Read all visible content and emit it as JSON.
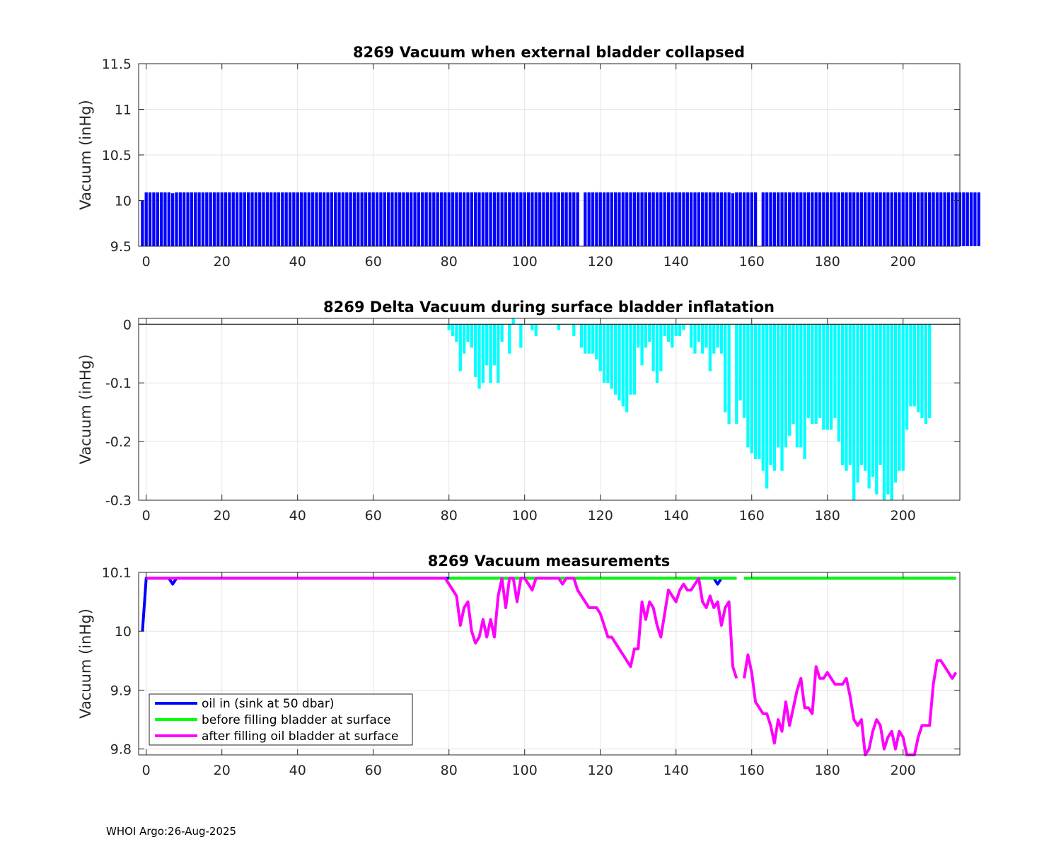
{
  "footer": "WHOI Argo:26-Aug-2025",
  "colors": {
    "blue": "#0000ff",
    "cyan": "#00ffff",
    "green": "#00ff00",
    "magenta": "#ff00ff",
    "grid": "#e5e5e5",
    "axis": "#262626"
  },
  "chart_data": [
    {
      "type": "bar",
      "title": "8269 Vacuum when external bladder collapsed",
      "xlabel": "",
      "ylabel": "Vacuum (inHg)",
      "xlim": [
        -2,
        215
      ],
      "ylim": [
        9.5,
        11.5
      ],
      "xticks": [
        0,
        20,
        40,
        60,
        80,
        100,
        120,
        140,
        160,
        180,
        200
      ],
      "yticks": [
        9.5,
        10,
        10.5,
        11,
        11.5
      ],
      "ytick_labels": [
        "9.5",
        "10",
        "10.5",
        "11",
        "11.5"
      ],
      "grid": true,
      "color": "#0000ff",
      "x_start": -1,
      "values": [
        10.0,
        10.09,
        10.09,
        10.09,
        10.09,
        10.09,
        10.09,
        10.09,
        10.08,
        10.09,
        10.09,
        10.09,
        10.09,
        10.09,
        10.09,
        10.09,
        10.09,
        10.09,
        10.09,
        10.09,
        10.09,
        10.09,
        10.09,
        10.09,
        10.09,
        10.09,
        10.09,
        10.09,
        10.09,
        10.09,
        10.09,
        10.09,
        10.09,
        10.09,
        10.09,
        10.09,
        10.09,
        10.09,
        10.09,
        10.09,
        10.09,
        10.09,
        10.09,
        10.09,
        10.09,
        10.09,
        10.09,
        10.09,
        10.09,
        10.09,
        10.09,
        10.09,
        10.09,
        10.09,
        10.09,
        10.09,
        10.09,
        10.09,
        10.09,
        10.09,
        10.09,
        10.09,
        10.09,
        10.09,
        10.09,
        10.09,
        10.09,
        10.09,
        10.09,
        10.09,
        10.09,
        10.09,
        10.09,
        10.09,
        10.09,
        10.09,
        10.09,
        10.09,
        10.09,
        10.09,
        10.09,
        10.09,
        10.09,
        10.09,
        10.09,
        10.09,
        10.09,
        10.09,
        10.09,
        10.09,
        10.09,
        10.09,
        10.09,
        10.09,
        10.09,
        10.09,
        10.09,
        10.09,
        10.09,
        10.09,
        10.09,
        10.09,
        10.09,
        10.09,
        10.09,
        10.09,
        10.09,
        10.09,
        10.09,
        10.09,
        10.09,
        10.09,
        10.09,
        10.09,
        10.09,
        10.09,
        null,
        10.09,
        10.09,
        10.09,
        10.09,
        10.09,
        10.09,
        10.09,
        10.09,
        10.09,
        10.09,
        10.09,
        10.09,
        10.09,
        10.09,
        10.09,
        10.09,
        10.09,
        10.09,
        10.09,
        10.09,
        10.09,
        10.09,
        10.09,
        10.09,
        10.09,
        10.09,
        10.09,
        10.09,
        10.09,
        10.09,
        10.09,
        10.09,
        10.09,
        10.09,
        10.09,
        10.09,
        10.09,
        10.09,
        10.09,
        10.08,
        10.09,
        10.09,
        10.09,
        10.09,
        10.09,
        10.09,
        null,
        10.09,
        10.09,
        10.09,
        10.09,
        10.09,
        10.09,
        10.09,
        10.09,
        10.09,
        10.09,
        10.09,
        10.09,
        10.09,
        10.09,
        10.09,
        10.09,
        10.09,
        10.09,
        10.09,
        10.09,
        10.09,
        10.09,
        10.09,
        10.09,
        10.09,
        10.09,
        10.09,
        10.09,
        10.09,
        10.09,
        10.09,
        10.09,
        10.09,
        10.09,
        10.09,
        10.09,
        10.09,
        10.09,
        10.09,
        10.09,
        10.09,
        10.09,
        10.09,
        10.09,
        10.09,
        10.09,
        10.09,
        10.09,
        10.09,
        10.09,
        10.09,
        10.09,
        10.09,
        10.09,
        10.09,
        10.09,
        10.09,
        10.09
      ]
    },
    {
      "type": "bar",
      "title": "8269 Delta Vacuum during surface bladder inflatation",
      "xlabel": "",
      "ylabel": "Vacuum (inHg)",
      "xlim": [
        -2,
        215
      ],
      "ylim": [
        -0.3,
        0.01
      ],
      "xticks": [
        0,
        20,
        40,
        60,
        80,
        100,
        120,
        140,
        160,
        180,
        200
      ],
      "yticks": [
        -0.3,
        -0.2,
        -0.1,
        0
      ],
      "ytick_labels": [
        "-0.3",
        "-0.2",
        "-0.1",
        "0"
      ],
      "grid": true,
      "color": "#00ffff",
      "x_start": 80,
      "values": [
        -0.01,
        -0.02,
        -0.03,
        -0.08,
        -0.05,
        -0.03,
        -0.04,
        -0.09,
        -0.11,
        -0.1,
        -0.07,
        -0.1,
        -0.07,
        -0.1,
        -0.03,
        0,
        -0.05,
        0.01,
        0,
        -0.04,
        0,
        0,
        -0.01,
        -0.02,
        0,
        0,
        0,
        0,
        0,
        -0.01,
        0,
        0,
        0,
        -0.02,
        0,
        -0.04,
        -0.05,
        -0.05,
        -0.05,
        -0.06,
        -0.08,
        -0.1,
        -0.1,
        -0.11,
        -0.12,
        -0.13,
        -0.14,
        -0.15,
        -0.12,
        -0.12,
        -0.04,
        -0.07,
        -0.04,
        -0.03,
        -0.08,
        -0.1,
        -0.08,
        -0.02,
        -0.03,
        -0.04,
        -0.02,
        -0.02,
        -0.01,
        0,
        -0.04,
        -0.05,
        -0.03,
        -0.05,
        -0.04,
        -0.08,
        -0.05,
        -0.04,
        -0.05,
        -0.15,
        -0.17,
        0,
        -0.17,
        -0.13,
        -0.16,
        -0.21,
        -0.22,
        -0.23,
        -0.23,
        -0.25,
        -0.28,
        -0.24,
        -0.25,
        -0.21,
        -0.25,
        -0.21,
        -0.19,
        -0.17,
        -0.21,
        -0.21,
        -0.23,
        -0.16,
        -0.17,
        -0.17,
        -0.16,
        -0.18,
        -0.18,
        -0.18,
        -0.16,
        -0.2,
        -0.24,
        -0.25,
        -0.24,
        -0.3,
        -0.27,
        -0.24,
        -0.25,
        -0.28,
        -0.26,
        -0.29,
        -0.24,
        -0.3,
        -0.29,
        -0.3,
        -0.27,
        -0.25,
        -0.25,
        -0.18,
        -0.14,
        -0.14,
        -0.15,
        -0.16,
        -0.17,
        -0.16
      ]
    },
    {
      "type": "line",
      "title": "8269 Vacuum measurements",
      "xlabel": "",
      "ylabel": "Vacuum (inHg)",
      "xlim": [
        -2,
        215
      ],
      "ylim": [
        9.79,
        10.1
      ],
      "xticks": [
        0,
        20,
        40,
        60,
        80,
        100,
        120,
        140,
        160,
        180,
        200
      ],
      "yticks": [
        9.8,
        9.9,
        10,
        10.1
      ],
      "ytick_labels": [
        "9.8",
        "9.9",
        "10",
        "10.1"
      ],
      "grid": true,
      "legend_position": "bottom-left",
      "series": [
        {
          "name": "oil in (sink at 50 dbar)",
          "color": "#0000ff",
          "points": [
            [
              -1,
              10.0
            ],
            [
              0,
              10.09
            ],
            [
              6,
              10.09
            ],
            [
              7,
              10.08
            ],
            [
              8,
              10.09
            ],
            [
              150,
              10.09
            ],
            [
              151,
              10.08
            ],
            [
              152,
              10.09
            ],
            [
              156,
              10.09
            ],
            [
              null,
              null
            ],
            [
              158,
              10.09
            ],
            [
              214,
              10.09
            ]
          ]
        },
        {
          "name": "before filling bladder at surface",
          "color": "#00ff00",
          "points": [
            [
              80,
              10.09
            ],
            [
              156,
              10.09
            ],
            [
              null,
              null
            ],
            [
              158,
              10.09
            ],
            [
              214,
              10.09
            ]
          ]
        },
        {
          "name": "after filling oil bladder at surface",
          "color": "#ff00ff",
          "points": [
            [
              0,
              10.09
            ],
            [
              79,
              10.09
            ],
            [
              80,
              10.08
            ],
            [
              81,
              10.07
            ],
            [
              82,
              10.06
            ],
            [
              83,
              10.01
            ],
            [
              84,
              10.04
            ],
            [
              85,
              10.05
            ],
            [
              86,
              10.0
            ],
            [
              87,
              9.98
            ],
            [
              88,
              9.99
            ],
            [
              89,
              10.02
            ],
            [
              90,
              9.99
            ],
            [
              91,
              10.02
            ],
            [
              92,
              9.99
            ],
            [
              93,
              10.06
            ],
            [
              94,
              10.09
            ],
            [
              95,
              10.04
            ],
            [
              96,
              10.09
            ],
            [
              97,
              10.09
            ],
            [
              98,
              10.05
            ],
            [
              99,
              10.09
            ],
            [
              100,
              10.09
            ],
            [
              101,
              10.08
            ],
            [
              102,
              10.07
            ],
            [
              103,
              10.09
            ],
            [
              109,
              10.09
            ],
            [
              110,
              10.08
            ],
            [
              111,
              10.09
            ],
            [
              113,
              10.09
            ],
            [
              114,
              10.07
            ],
            [
              116,
              10.05
            ],
            [
              117,
              10.04
            ],
            [
              119,
              10.04
            ],
            [
              120,
              10.03
            ],
            [
              121,
              10.01
            ],
            [
              122,
              9.99
            ],
            [
              123,
              9.99
            ],
            [
              128,
              9.94
            ],
            [
              129,
              9.97
            ],
            [
              130,
              9.97
            ],
            [
              131,
              10.05
            ],
            [
              132,
              10.02
            ],
            [
              133,
              10.05
            ],
            [
              134,
              10.04
            ],
            [
              135,
              10.01
            ],
            [
              136,
              9.99
            ],
            [
              137,
              10.03
            ],
            [
              138,
              10.07
            ],
            [
              139,
              10.06
            ],
            [
              140,
              10.05
            ],
            [
              141,
              10.07
            ],
            [
              142,
              10.08
            ],
            [
              143,
              10.07
            ],
            [
              144,
              10.07
            ],
            [
              145,
              10.08
            ],
            [
              146,
              10.09
            ],
            [
              147,
              10.05
            ],
            [
              148,
              10.04
            ],
            [
              149,
              10.06
            ],
            [
              150,
              10.04
            ],
            [
              151,
              10.05
            ],
            [
              152,
              10.01
            ],
            [
              153,
              10.04
            ],
            [
              154,
              10.05
            ],
            [
              155,
              9.94
            ],
            [
              156,
              9.92
            ],
            [
              null,
              null
            ],
            [
              158,
              9.92
            ],
            [
              159,
              9.96
            ],
            [
              160,
              9.93
            ],
            [
              161,
              9.88
            ],
            [
              163,
              9.86
            ],
            [
              164,
              9.86
            ],
            [
              165,
              9.84
            ],
            [
              166,
              9.81
            ],
            [
              167,
              9.85
            ],
            [
              168,
              9.83
            ],
            [
              169,
              9.88
            ],
            [
              170,
              9.84
            ],
            [
              171,
              9.87
            ],
            [
              172,
              9.9
            ],
            [
              173,
              9.92
            ],
            [
              174,
              9.87
            ],
            [
              175,
              9.87
            ],
            [
              176,
              9.86
            ],
            [
              177,
              9.94
            ],
            [
              178,
              9.92
            ],
            [
              179,
              9.92
            ],
            [
              180,
              9.93
            ],
            [
              181,
              9.92
            ],
            [
              182,
              9.91
            ],
            [
              184,
              9.91
            ],
            [
              185,
              9.92
            ],
            [
              186,
              9.89
            ],
            [
              187,
              9.85
            ],
            [
              188,
              9.84
            ],
            [
              189,
              9.85
            ],
            [
              190,
              9.79
            ],
            [
              191,
              9.8
            ],
            [
              192,
              9.83
            ],
            [
              193,
              9.85
            ],
            [
              194,
              9.84
            ],
            [
              195,
              9.8
            ],
            [
              196,
              9.82
            ],
            [
              197,
              9.83
            ],
            [
              198,
              9.8
            ],
            [
              199,
              9.83
            ],
            [
              200,
              9.82
            ],
            [
              201,
              9.79
            ],
            [
              202,
              9.79
            ],
            [
              203,
              9.79
            ],
            [
              204,
              9.82
            ],
            [
              205,
              9.84
            ],
            [
              206,
              9.84
            ],
            [
              207,
              9.84
            ],
            [
              208,
              9.91
            ],
            [
              209,
              9.95
            ],
            [
              210,
              9.95
            ],
            [
              211,
              9.94
            ],
            [
              212,
              9.93
            ],
            [
              213,
              9.92
            ],
            [
              214,
              9.93
            ]
          ]
        }
      ]
    }
  ]
}
